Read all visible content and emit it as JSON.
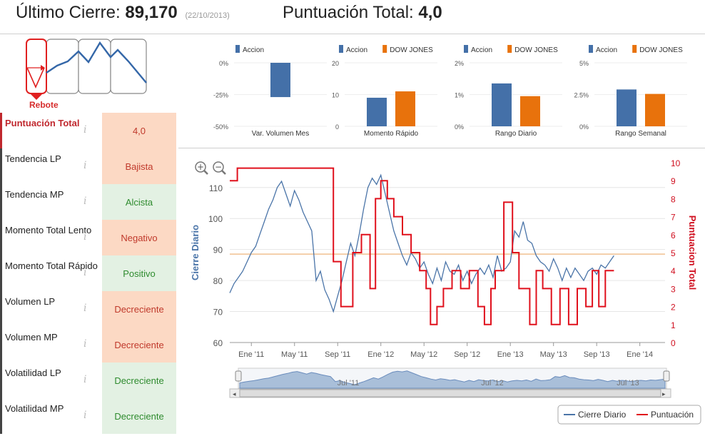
{
  "header": {
    "last_close_label": "Último Cierre:",
    "last_close_value": "89,170",
    "last_close_date": "(22/10/2013)",
    "total_score_label": "Puntuación Total:",
    "total_score_value": "4,0"
  },
  "rebote": {
    "label": "Rebote"
  },
  "info_glyph": "i",
  "scores": [
    {
      "label": "Puntuación Total",
      "value": "4,0",
      "tone": "neg"
    },
    {
      "label": "Tendencia LP",
      "value": "Bajista",
      "tone": "neg"
    },
    {
      "label": "Tendencia MP",
      "value": "Alcista",
      "tone": "pos"
    },
    {
      "label": "Momento Total Lento",
      "value": "Negativo",
      "tone": "neg"
    },
    {
      "label": "Momento Total Rápido",
      "value": "Positivo",
      "tone": "pos"
    },
    {
      "label": "Volumen LP",
      "value": "Decreciente",
      "tone": "neg"
    },
    {
      "label": "Volumen MP",
      "value": "Decreciente",
      "tone": "neg"
    },
    {
      "label": "Volatilidad LP",
      "value": "Decreciente",
      "tone": "pos"
    },
    {
      "label": "Volatilidad MP",
      "value": "Decreciente",
      "tone": "pos"
    }
  ],
  "colors": {
    "accion": "#4470a8",
    "dow": "#e8720c",
    "score_line": "#e0101c",
    "price_line": "#4a74a8",
    "ref_line": "#f0c090",
    "negative_bg": "#fcd9c4",
    "positive_bg": "#e3f1e3"
  },
  "chart_data": [
    {
      "type": "bar",
      "category": "Var. Volumen Mes",
      "series": [
        {
          "name": "Accion",
          "values": [
            -27
          ]
        }
      ],
      "yticks": [
        "0%",
        "-25%",
        "-50%"
      ],
      "ylim": [
        -50,
        0
      ],
      "legend": "top"
    },
    {
      "type": "bar",
      "category": "Momento Rápido",
      "series": [
        {
          "name": "Accion",
          "values": [
            9
          ]
        },
        {
          "name": "DOW JONES",
          "values": [
            11
          ]
        }
      ],
      "yticks": [
        "20",
        "10",
        "0"
      ],
      "ylim": [
        0,
        20
      ],
      "legend": "top"
    },
    {
      "type": "bar",
      "category": "Rango Diario",
      "series": [
        {
          "name": "Accion",
          "values": [
            1.35
          ]
        },
        {
          "name": "DOW JONES",
          "values": [
            0.95
          ]
        }
      ],
      "yticks": [
        "2%",
        "1%",
        "0%"
      ],
      "ylim": [
        0,
        2
      ],
      "legend": "top"
    },
    {
      "type": "bar",
      "category": "Rango Semanal",
      "series": [
        {
          "name": "Accion",
          "values": [
            2.9
          ]
        },
        {
          "name": "DOW JONES",
          "values": [
            2.55
          ]
        }
      ],
      "yticks": [
        "5%",
        "2.5%",
        "0%"
      ],
      "ylim": [
        0,
        5
      ],
      "legend": "top"
    },
    {
      "type": "line",
      "ylabel": "Cierre Diario",
      "y2label": "Puntuacion Total",
      "ylim": [
        60,
        118
      ],
      "y2lim": [
        0,
        10
      ],
      "yticks": [
        60,
        70,
        80,
        90,
        100,
        110
      ],
      "y2ticks": [
        0,
        1,
        2,
        3,
        4,
        5,
        6,
        7,
        8,
        9,
        10
      ],
      "xlim": [
        0,
        48
      ],
      "xticks": [
        {
          "m": 2,
          "label": "Ene '11"
        },
        {
          "m": 6,
          "label": "May '11"
        },
        {
          "m": 10,
          "label": "Sep '11"
        },
        {
          "m": 14,
          "label": "Ene '12"
        },
        {
          "m": 18,
          "label": "May '12"
        },
        {
          "m": 22,
          "label": "Sep '12"
        },
        {
          "m": 26,
          "label": "Ene '13"
        },
        {
          "m": 30,
          "label": "May '13"
        },
        {
          "m": 34,
          "label": "Sep '13"
        },
        {
          "m": 38,
          "label": "Ene '14"
        }
      ],
      "reference_value": 88.5,
      "navigator_labels": [
        "Jul '11",
        "Jul '12",
        "Jul '13"
      ],
      "legend": "bottom-right",
      "series": [
        {
          "name": "Cierre Diario",
          "x": [
            0.0,
            0.4,
            0.8,
            1.2,
            1.6,
            2.0,
            2.4,
            2.8,
            3.2,
            3.6,
            4.0,
            4.4,
            4.8,
            5.2,
            5.6,
            6.0,
            6.4,
            6.8,
            7.2,
            7.6,
            8.0,
            8.4,
            8.8,
            9.2,
            9.6,
            10.0,
            10.4,
            10.8,
            11.2,
            11.6,
            12.0,
            12.4,
            12.8,
            13.2,
            13.6,
            14.0,
            14.4,
            14.8,
            15.2,
            15.6,
            16.0,
            16.4,
            16.8,
            17.2,
            17.6,
            18.0,
            18.4,
            18.8,
            19.2,
            19.6,
            20.0,
            20.4,
            20.8,
            21.2,
            21.6,
            22.0,
            22.4,
            22.8,
            23.2,
            23.6,
            24.0,
            24.4,
            24.8,
            25.2,
            25.6,
            26.0,
            26.4,
            26.8,
            27.2,
            27.6,
            28.0,
            28.4,
            28.8,
            29.2,
            29.6,
            30.0,
            30.4,
            30.8,
            31.2,
            31.6,
            32.0,
            32.4,
            32.8,
            33.2,
            33.6,
            34.0,
            34.4,
            34.8,
            35.2,
            35.6
          ],
          "values": [
            76,
            79,
            81,
            83,
            86,
            89,
            91,
            95,
            99,
            103,
            106,
            110,
            112,
            108,
            104,
            109,
            106,
            102,
            99,
            96,
            80,
            83,
            77,
            74,
            70,
            75,
            80,
            86,
            92,
            88,
            95,
            103,
            110,
            113,
            111,
            114,
            108,
            102,
            96,
            92,
            88,
            85,
            89,
            87,
            84,
            86,
            82,
            79,
            84,
            80,
            86,
            83,
            82,
            85,
            80,
            83,
            79,
            82,
            84,
            82,
            85,
            81,
            88,
            83,
            84,
            86,
            96,
            94,
            99,
            93,
            92,
            88,
            86,
            85,
            83,
            87,
            84,
            80,
            84,
            81,
            84,
            82,
            80,
            83,
            84,
            82,
            85,
            84,
            86,
            88
          ]
        },
        {
          "name": "Puntuación",
          "x": [
            0.0,
            0.7,
            0.7,
            2.3,
            2.3,
            3.5,
            3.5,
            4.4,
            4.4,
            5.4,
            5.4,
            6.2,
            6.2,
            7.3,
            7.3,
            8.6,
            8.6,
            9.2,
            9.2,
            9.6,
            9.6,
            10.3,
            10.3,
            10.7,
            10.7,
            11.4,
            11.4,
            12.2,
            12.2,
            13.0,
            13.0,
            13.5,
            13.5,
            14.0,
            14.0,
            14.6,
            14.6,
            15.2,
            15.2,
            16.0,
            16.0,
            16.8,
            16.8,
            17.6,
            17.6,
            18.2,
            18.2,
            18.6,
            18.6,
            19.2,
            19.2,
            19.8,
            19.8,
            20.6,
            20.6,
            21.4,
            21.4,
            22.2,
            22.2,
            23.0,
            23.0,
            23.6,
            23.6,
            24.2,
            24.2,
            24.6,
            24.6,
            25.4,
            25.4,
            26.2,
            26.2,
            26.8,
            26.8,
            27.8,
            27.8,
            28.4,
            28.4,
            29.0,
            29.0,
            29.8,
            29.8,
            30.6,
            30.6,
            31.4,
            31.4,
            32.2,
            32.2,
            33.0,
            33.0,
            33.6,
            33.6,
            34.2,
            34.2,
            34.8,
            34.8,
            35.6
          ],
          "values": [
            9,
            9,
            9.7,
            9.7,
            9.7,
            9.7,
            9.7,
            9.7,
            9.7,
            9.7,
            9.7,
            9.7,
            9.7,
            9.7,
            9.7,
            9.7,
            9.7,
            9.7,
            9.7,
            9.7,
            4.5,
            4.5,
            2,
            2,
            2,
            2,
            5,
            5,
            6,
            6,
            3,
            3,
            8,
            8,
            9,
            9,
            8,
            8,
            7,
            7,
            6,
            6,
            5,
            5,
            4,
            4,
            3,
            3,
            1,
            1,
            2,
            2,
            3,
            3,
            4,
            4,
            3,
            3,
            4,
            4,
            2,
            2,
            1,
            1,
            3,
            3,
            4,
            4,
            7.8,
            7.8,
            5,
            5,
            3,
            3,
            1,
            1,
            4,
            4,
            3,
            3,
            1,
            1,
            3,
            3,
            1,
            1,
            3,
            3,
            2,
            2,
            4,
            4,
            2,
            2,
            4,
            4
          ]
        }
      ]
    }
  ]
}
